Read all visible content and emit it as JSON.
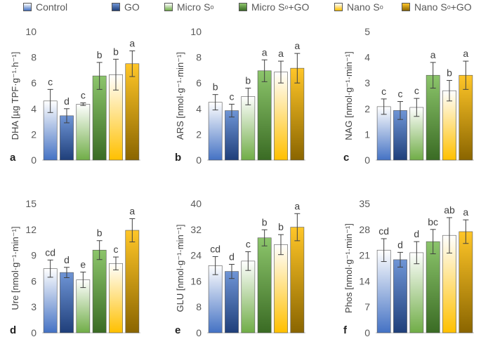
{
  "legend": [
    {
      "label": "Control",
      "sup": "",
      "suffix": ""
    },
    {
      "label": "GO",
      "sup": "",
      "suffix": ""
    },
    {
      "label": "Micro S",
      "sup": "o",
      "suffix": ""
    },
    {
      "label": "Micro S",
      "sup": "o",
      "suffix": "+GO"
    },
    {
      "label": "Nano S",
      "sup": "o",
      "suffix": ""
    },
    {
      "label": "Nano S",
      "sup": "o",
      "suffix": "+GO"
    }
  ],
  "colors": {
    "Control": [
      "#ffffff",
      "#4472c4"
    ],
    "GO": [
      "#6f95d6",
      "#1f3f7a"
    ],
    "Micro S°": [
      "#ffffff",
      "#70ad47"
    ],
    "Micro S°+GO": [
      "#8cc56b",
      "#3a6b24"
    ],
    "Nano S°": [
      "#ffffff",
      "#ffc000"
    ],
    "Nano S°+GO": [
      "#ffc628",
      "#8a6500"
    ]
  },
  "chart_data": [
    {
      "type": "bar",
      "panel": "a",
      "ylabel": "DHA [µg TPF·g⁻¹·h⁻¹]",
      "categories": [
        "Control",
        "GO",
        "Micro S°",
        "Micro S°+GO",
        "Nano S°",
        "Nano S°+GO"
      ],
      "values": [
        4.6,
        3.45,
        4.35,
        6.55,
        6.65,
        7.5
      ],
      "errors": [
        0.9,
        0.55,
        0.1,
        1.05,
        1.2,
        1.0
      ],
      "letters": [
        "c",
        "d",
        "c",
        "b",
        "b",
        "a"
      ],
      "ylim": [
        0,
        10
      ],
      "yticks": [
        0,
        2,
        4,
        6,
        8,
        10
      ]
    },
    {
      "type": "bar",
      "panel": "b",
      "ylabel": "ARS [nmol·g⁻¹·min⁻¹]",
      "categories": [
        "Control",
        "GO",
        "Micro S°",
        "Micro S°+GO",
        "Nano S°",
        "Nano S°+GO"
      ],
      "values": [
        4.5,
        3.85,
        4.95,
        6.95,
        6.85,
        7.15
      ],
      "errors": [
        0.6,
        0.5,
        0.65,
        0.85,
        0.85,
        1.15
      ],
      "letters": [
        "b",
        "c",
        "b",
        "a",
        "a",
        "a"
      ],
      "ylim": [
        0,
        10
      ],
      "yticks": [
        0,
        2,
        4,
        6,
        8,
        10
      ]
    },
    {
      "type": "bar",
      "panel": "c",
      "ylabel": "NAG [nmol·g⁻¹·min⁻¹]",
      "categories": [
        "Control",
        "GO",
        "Micro S°",
        "Micro S°+GO",
        "Nano S°",
        "Nano S°+GO"
      ],
      "values": [
        2.08,
        1.93,
        2.05,
        3.3,
        2.7,
        3.3
      ],
      "errors": [
        0.3,
        0.35,
        0.35,
        0.5,
        0.4,
        0.55
      ],
      "letters": [
        "c",
        "c",
        "c",
        "a",
        "b",
        "a"
      ],
      "ylim": [
        0,
        5
      ],
      "yticks": [
        0,
        1,
        2,
        3,
        4,
        5
      ]
    },
    {
      "type": "bar",
      "panel": "d",
      "ylabel": "Ure [nmol·g⁻¹·min⁻¹]",
      "categories": [
        "Control",
        "GO",
        "Micro S°",
        "Micro S°+GO",
        "Nano S°",
        "Nano S°+GO"
      ],
      "values": [
        7.45,
        7.0,
        6.15,
        9.6,
        8.05,
        11.9
      ],
      "errors": [
        1.0,
        0.6,
        0.9,
        1.1,
        0.75,
        1.35
      ],
      "letters": [
        "cd",
        "d",
        "e",
        "b",
        "c",
        "a"
      ],
      "ylim": [
        0,
        15
      ],
      "yticks": [
        0,
        3,
        6,
        9,
        12,
        15
      ]
    },
    {
      "type": "bar",
      "panel": "e",
      "ylabel": "GLU [nmol·g⁻¹·min⁻¹]",
      "categories": [
        "Control",
        "GO",
        "Micro S°",
        "Micro S°+GO",
        "Nano S°",
        "Nano S°+GO"
      ],
      "values": [
        20.8,
        19.0,
        22.2,
        29.4,
        27.3,
        32.7
      ],
      "errors": [
        2.8,
        2.2,
        2.9,
        2.5,
        3.1,
        4.2
      ],
      "letters": [
        "cd",
        "d",
        "c",
        "b",
        "b",
        "a"
      ],
      "ylim": [
        0,
        40
      ],
      "yticks": [
        0,
        8,
        16,
        24,
        32,
        40
      ]
    },
    {
      "type": "bar",
      "panel": "f",
      "ylabel": "Phos [nmol·g⁻¹·min⁻¹]",
      "categories": [
        "Control",
        "GO",
        "Micro S°",
        "Micro S°+GO",
        "Nano S°",
        "Nano S°+GO"
      ],
      "values": [
        22.4,
        19.8,
        21.7,
        24.7,
        26.4,
        27.4
      ],
      "errors": [
        3.1,
        2.0,
        3.0,
        3.3,
        4.8,
        3.2
      ],
      "letters": [
        "cd",
        "d",
        "d",
        "bc",
        "ab",
        "a"
      ],
      "ylim": [
        0,
        35
      ],
      "yticks": [
        0,
        7,
        14,
        21,
        28,
        35
      ]
    }
  ]
}
